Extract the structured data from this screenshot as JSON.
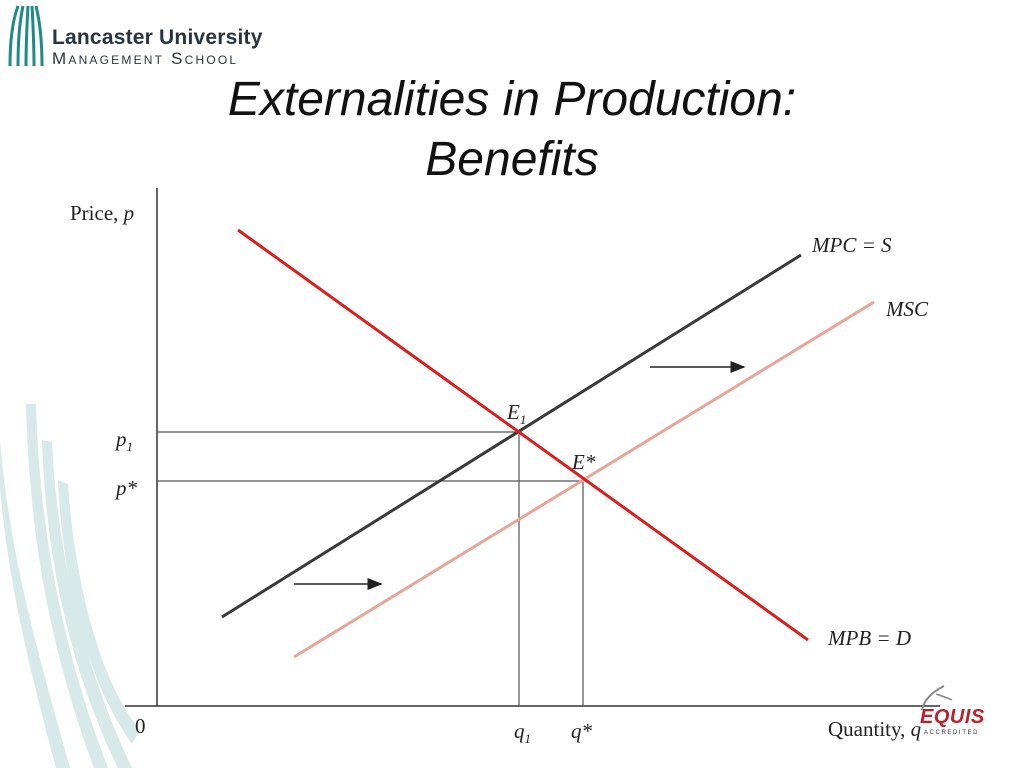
{
  "logo": {
    "line1": "Lancaster University",
    "line2": "Management School"
  },
  "title": {
    "line1": "Externalities in Production:",
    "line2": "Benefits"
  },
  "diagram": {
    "y_axis_label_text": "Price, ",
    "y_axis_label_var": "p",
    "x_axis_label_text": "Quantity, ",
    "x_axis_label_var": "q",
    "origin_label": "0",
    "curves": {
      "supply_label": "MPC = S",
      "msc_label": "MSC",
      "demand_label": "MPB = D"
    },
    "points": {
      "e1_base": "E",
      "e1_sub": "1",
      "estar": "E*"
    },
    "price_ticks": {
      "p1_base": "p",
      "p1_sub": "1",
      "pstar": "p*"
    },
    "quantity_ticks": {
      "q1_base": "q",
      "q1_sub": "1",
      "qstar": "q*"
    },
    "colors": {
      "supply": "#3a3a3a",
      "msc": "#e8a598",
      "demand": "#dd1c1c",
      "axes": "#333333",
      "deco": "#d7e9e8"
    }
  },
  "badge": {
    "word": "EQUIS",
    "sub": "ACCREDITED"
  }
}
